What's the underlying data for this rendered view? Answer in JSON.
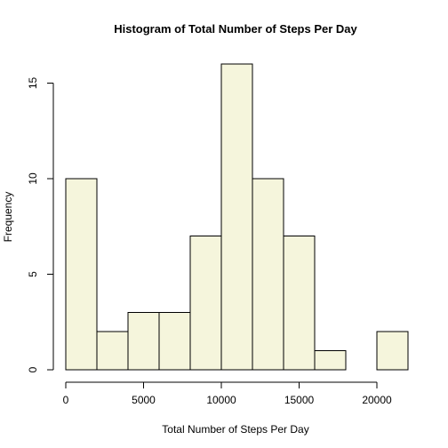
{
  "chart_data": {
    "type": "bar",
    "subtype": "histogram",
    "title": "Histogram of Total Number of Steps Per Day",
    "xlabel": "Total Number of Steps Per Day",
    "ylabel": "Frequency",
    "bins": [
      {
        "start": 0,
        "end": 2000,
        "count": 10
      },
      {
        "start": 2000,
        "end": 4000,
        "count": 2
      },
      {
        "start": 4000,
        "end": 6000,
        "count": 3
      },
      {
        "start": 6000,
        "end": 8000,
        "count": 3
      },
      {
        "start": 8000,
        "end": 10000,
        "count": 7
      },
      {
        "start": 10000,
        "end": 12000,
        "count": 16
      },
      {
        "start": 12000,
        "end": 14000,
        "count": 10
      },
      {
        "start": 14000,
        "end": 16000,
        "count": 7
      },
      {
        "start": 16000,
        "end": 18000,
        "count": 1
      },
      {
        "start": 18000,
        "end": 20000,
        "count": 0
      },
      {
        "start": 20000,
        "end": 22000,
        "count": 2
      }
    ],
    "x_ticks": [
      0,
      5000,
      10000,
      15000,
      20000
    ],
    "y_ticks": [
      0,
      5,
      10,
      15
    ],
    "xlim": [
      0,
      22000
    ],
    "ylim": [
      0,
      16
    ],
    "bar_color": "#F5F5DC",
    "grid": false,
    "legend": "none"
  }
}
